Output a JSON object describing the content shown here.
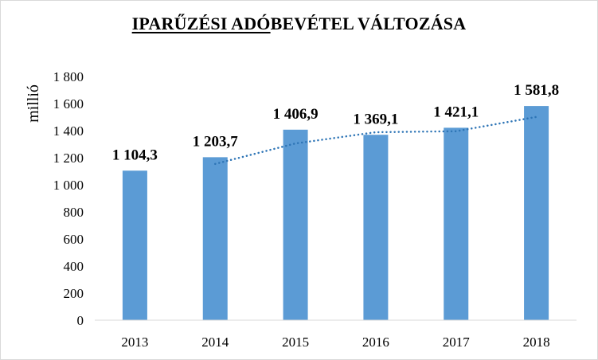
{
  "chart_data": {
    "type": "bar",
    "title_underlined": "IPARŰZÉSI ADÓ",
    "title_rest": "BEVÉTEL VÁLTOZÁSA",
    "ylabel": "millió",
    "xlabel": "",
    "categories": [
      "2013",
      "2014",
      "2015",
      "2016",
      "2017",
      "2018"
    ],
    "values": [
      1104.3,
      1203.7,
      1406.9,
      1369.1,
      1421.1,
      1581.8
    ],
    "data_labels": [
      "1 104,3",
      "1 203,7",
      "1 406,9",
      "1 369,1",
      "1 421,1",
      "1 581,8"
    ],
    "ylim": [
      0,
      1800
    ],
    "yticks": [
      0,
      200,
      400,
      600,
      800,
      1000,
      1200,
      1400,
      1600,
      1800
    ],
    "ytick_labels": [
      "0",
      "200",
      "400",
      "600",
      "800",
      "1 000",
      "1 200",
      "1 400",
      "1 600",
      "1 800"
    ],
    "trendline": {
      "type": "moving-average",
      "style": "dotted",
      "color": "#2e75b6"
    },
    "grid": false,
    "legend": "none",
    "bar_color": "#5b9bd5"
  }
}
